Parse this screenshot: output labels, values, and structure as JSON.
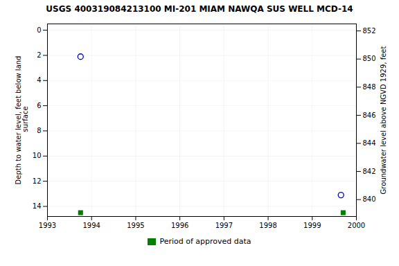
{
  "chart_data": {
    "type": "scatter",
    "title": "USGS 400319084213100 MI-201  MIAM NAWQA SUS WELL MCD-14",
    "ylabel": "Depth to water level, feet below land\n surface",
    "y2label": "Groundwater level above NGVD 1929, feet",
    "xlim": [
      1993,
      2000
    ],
    "xticks": [
      1993,
      1994,
      1995,
      1996,
      1997,
      1998,
      1999,
      2000
    ],
    "ylim": [
      14.8,
      -0.5
    ],
    "yticks": [
      0,
      2,
      4,
      6,
      8,
      10,
      12,
      14
    ],
    "y2lim": [
      838.8,
      852.5
    ],
    "y2ticks": [
      852,
      850,
      848,
      846,
      844,
      842,
      840
    ],
    "grid": true,
    "legend": "bottom",
    "series": [
      {
        "x": [
          1993.75,
          1999.65
        ],
        "values": [
          2.1,
          13.1
        ],
        "color": "#0000cc",
        "marker": "circle"
      },
      {
        "name": "Period of approved data",
        "x": [
          1993.75,
          1999.7
        ],
        "values": [
          14.5,
          14.5
        ],
        "color": "#008000",
        "marker": "square"
      }
    ]
  }
}
